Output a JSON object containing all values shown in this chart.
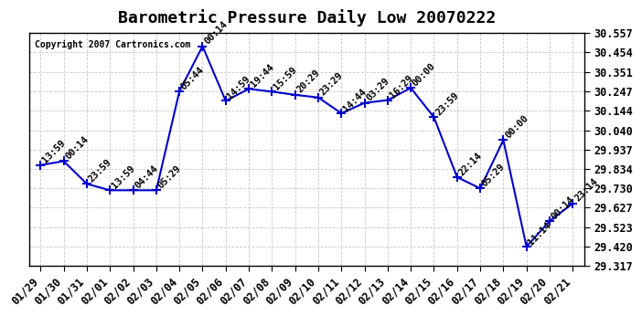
{
  "title": "Barometric Pressure Daily Low 20070222",
  "copyright": "Copyright 2007 Cartronics.com",
  "x_labels": [
    "01/29",
    "01/30",
    "01/31",
    "02/01",
    "02/02",
    "02/03",
    "02/04",
    "02/05",
    "02/06",
    "02/07",
    "02/08",
    "02/09",
    "02/10",
    "02/11",
    "02/12",
    "02/13",
    "02/14",
    "02/15",
    "02/16",
    "02/17",
    "02/18",
    "02/19",
    "02/20",
    "02/21"
  ],
  "y_values": [
    29.854,
    29.875,
    29.754,
    29.72,
    29.72,
    29.72,
    30.247,
    30.487,
    30.196,
    30.26,
    30.245,
    30.228,
    30.214,
    30.13,
    30.185,
    30.2,
    30.265,
    30.109,
    29.79,
    29.73,
    29.987,
    29.42,
    29.556,
    29.65
  ],
  "time_labels": [
    "13:59",
    "00:14",
    "23:59",
    "13:59",
    "04:44",
    "05:29",
    "05:44",
    "00:14",
    "14:59",
    "19:44",
    "15:59",
    "20:29",
    "23:29",
    "14:44",
    "03:29",
    "16:29",
    "00:00",
    "23:59",
    "22:14",
    "05:29",
    "00:00",
    "11:14",
    "00:14",
    "23:14"
  ],
  "y_min": 29.317,
  "y_max": 30.557,
  "y_ticks": [
    29.317,
    29.42,
    29.523,
    29.627,
    29.73,
    29.834,
    29.937,
    30.04,
    30.144,
    30.247,
    30.351,
    30.454,
    30.557
  ],
  "line_color": "#0000cc",
  "marker": "+",
  "background_color": "#ffffff",
  "grid_color": "#c8c8c8",
  "title_fontsize": 13,
  "tick_fontsize": 8.5,
  "label_fontsize": 7.5
}
